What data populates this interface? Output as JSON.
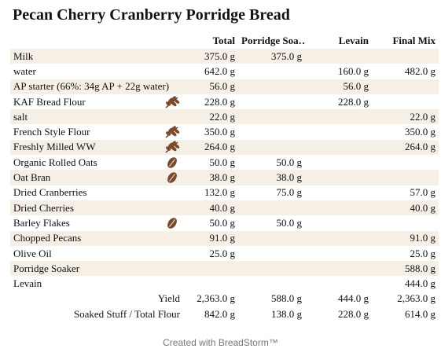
{
  "title": "Pecan Cherry Cranberry Porridge Bread",
  "columns": [
    "Total",
    "Porridge Soa…",
    "Levain",
    "Final Mix"
  ],
  "rows": [
    {
      "name": "Milk",
      "icon": "",
      "total": "375.0 g",
      "porridge": "375.0 g",
      "levain": "",
      "final": ""
    },
    {
      "name": "water",
      "icon": "",
      "total": "642.0 g",
      "porridge": "",
      "levain": "160.0 g",
      "final": "482.0 g"
    },
    {
      "name": "AP starter (66%: 34g AP + 22g water)",
      "icon": "",
      "total": "56.0 g",
      "porridge": "",
      "levain": "56.0 g",
      "final": ""
    },
    {
      "name": "KAF Bread Flour",
      "icon": "wheat-icon",
      "total": "228.0 g",
      "porridge": "",
      "levain": "228.0 g",
      "final": ""
    },
    {
      "name": "salt",
      "icon": "",
      "total": "22.0 g",
      "porridge": "",
      "levain": "",
      "final": "22.0 g"
    },
    {
      "name": "French Style Flour",
      "icon": "wheat-icon",
      "total": "350.0 g",
      "porridge": "",
      "levain": "",
      "final": "350.0 g"
    },
    {
      "name": "Freshly Milled WW",
      "icon": "wheat-icon",
      "total": "264.0 g",
      "porridge": "",
      "levain": "",
      "final": "264.0 g"
    },
    {
      "name": "Organic Rolled Oats",
      "icon": "grain-icon",
      "total": "50.0 g",
      "porridge": "50.0 g",
      "levain": "",
      "final": ""
    },
    {
      "name": "Oat Bran",
      "icon": "grain-icon",
      "total": "38.0 g",
      "porridge": "38.0 g",
      "levain": "",
      "final": ""
    },
    {
      "name": "Dried Cranberries",
      "icon": "",
      "total": "132.0 g",
      "porridge": "75.0 g",
      "levain": "",
      "final": "57.0 g"
    },
    {
      "name": "Dried Cherries",
      "icon": "",
      "total": "40.0 g",
      "porridge": "",
      "levain": "",
      "final": "40.0 g"
    },
    {
      "name": "Barley Flakes",
      "icon": "grain-icon",
      "total": "50.0 g",
      "porridge": "50.0 g",
      "levain": "",
      "final": ""
    },
    {
      "name": "Chopped Pecans",
      "icon": "",
      "total": "91.0 g",
      "porridge": "",
      "levain": "",
      "final": "91.0 g"
    },
    {
      "name": "Olive Oil",
      "icon": "",
      "total": "25.0 g",
      "porridge": "",
      "levain": "",
      "final": "25.0 g"
    },
    {
      "name": "Porridge Soaker",
      "icon": "",
      "total": "",
      "porridge": "",
      "levain": "",
      "final": "588.0 g"
    },
    {
      "name": "Levain",
      "icon": "",
      "total": "",
      "porridge": "",
      "levain": "",
      "final": "444.0 g"
    }
  ],
  "summary": [
    {
      "label": "Yield",
      "total": "2,363.0 g",
      "porridge": "588.0 g",
      "levain": "444.0 g",
      "final": "2,363.0 g"
    },
    {
      "label": "Soaked Stuff / Total Flour",
      "total": "842.0 g",
      "porridge": "138.0 g",
      "levain": "228.0 g",
      "final": "614.0 g"
    }
  ],
  "footer": "Created with BreadStorm™",
  "colors": {
    "shade": "#f5efe6",
    "icon": "#7a4a2b"
  }
}
